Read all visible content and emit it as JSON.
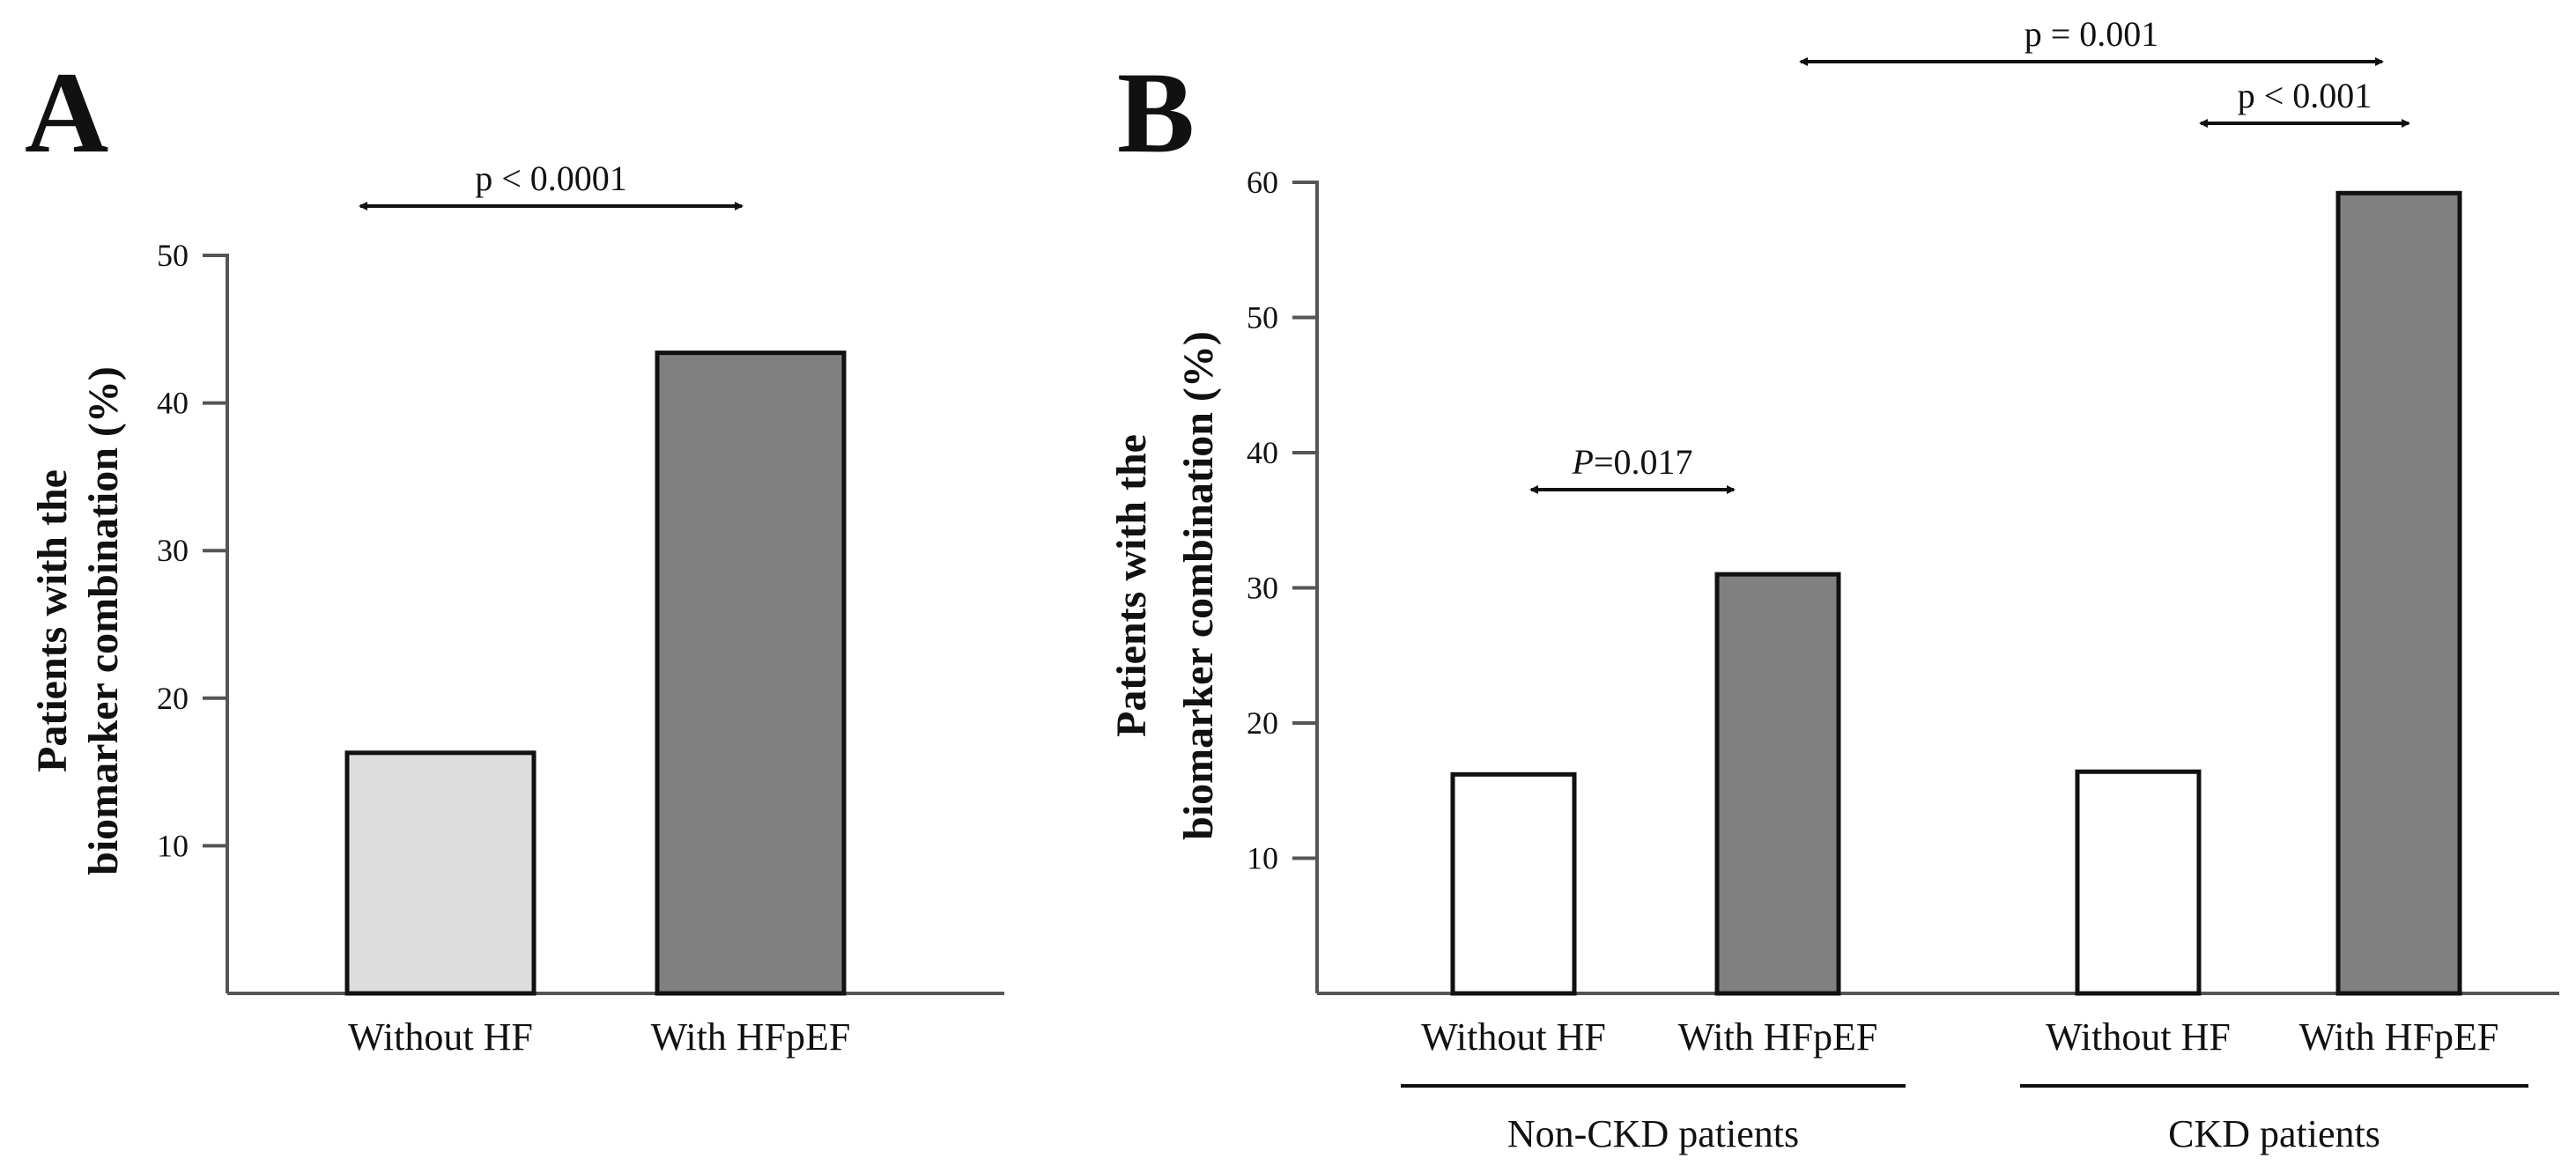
{
  "chart_data": [
    {
      "type": "bar",
      "panel": "A",
      "ylabel_line1": "Patients with the",
      "ylabel_line2": "biomarker combination (%)",
      "ylim": [
        0,
        50
      ],
      "yticks": [
        "10",
        "20",
        "30",
        "40",
        "50"
      ],
      "categories": [
        "Without HF",
        "With HFpEF"
      ],
      "values": [
        16.3,
        43.4
      ],
      "colors": [
        "#dddddd",
        "#808080"
      ],
      "comparisons": [
        {
          "text": "p < 0.0001",
          "from": 0,
          "to": 1
        }
      ]
    },
    {
      "type": "bar",
      "panel": "B",
      "ylabel_line1": "Patients with the",
      "ylabel_line2": "biomarker combination (%)",
      "ylim": [
        0,
        60
      ],
      "yticks": [
        "10",
        "20",
        "30",
        "40",
        "50",
        "60"
      ],
      "categories": [
        "Without HF",
        "With HFpEF",
        "Without HF",
        "With HFpEF"
      ],
      "values": [
        16.2,
        31.0,
        16.4,
        59.2
      ],
      "colors": [
        "#ffffff",
        "#808080",
        "#ffffff",
        "#808080"
      ],
      "groups": [
        {
          "label": "Non-CKD patients",
          "members": [
            0,
            1
          ]
        },
        {
          "label": "CKD patients",
          "members": [
            2,
            3
          ]
        }
      ],
      "comparisons": [
        {
          "text_italic": "P",
          "text": "=0.017",
          "from": 0,
          "to": 1
        },
        {
          "text": "p = 0.001",
          "from": 1,
          "to": 3
        },
        {
          "text": "p < 0.001",
          "from": 2,
          "to": 3
        }
      ]
    }
  ]
}
